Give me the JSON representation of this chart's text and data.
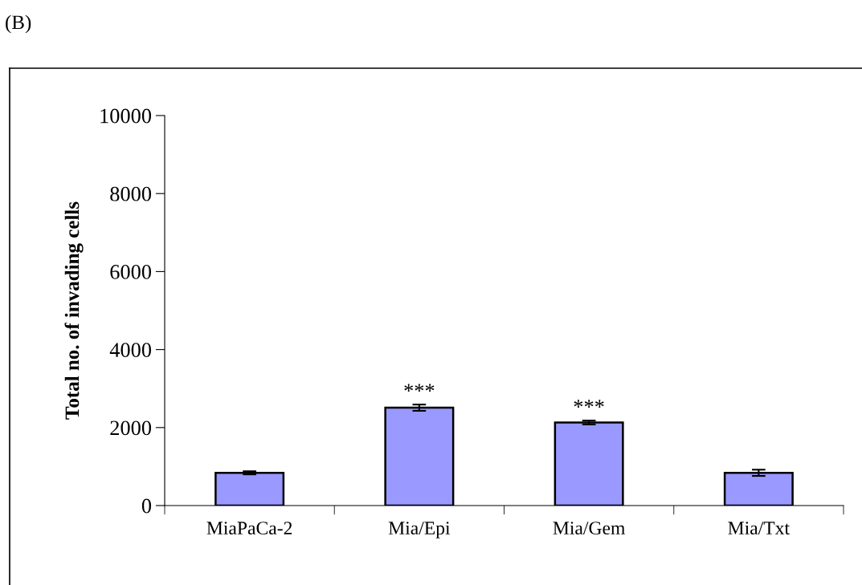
{
  "chart_data": {
    "type": "bar",
    "ylabel": "Total no. of invading cells",
    "categories": [
      "MiaPaCa-2",
      "Mia/Epi",
      "Mia/Gem",
      "Mia/Txt"
    ],
    "values": [
      840,
      2510,
      2130,
      840
    ],
    "errors": [
      40,
      80,
      50,
      80
    ],
    "color": "#9999ff",
    "ylim": [
      0,
      10000
    ],
    "yticks": [
      0,
      2000,
      4000,
      6000,
      8000,
      10000
    ],
    "grid": false,
    "legend": false,
    "annotations": [
      "(B)",
      {
        "text": "***",
        "x": "Mia/Epi",
        "y": 2510
      },
      {
        "text": "***",
        "x": "Mia/Gem",
        "y": 2130
      }
    ]
  }
}
